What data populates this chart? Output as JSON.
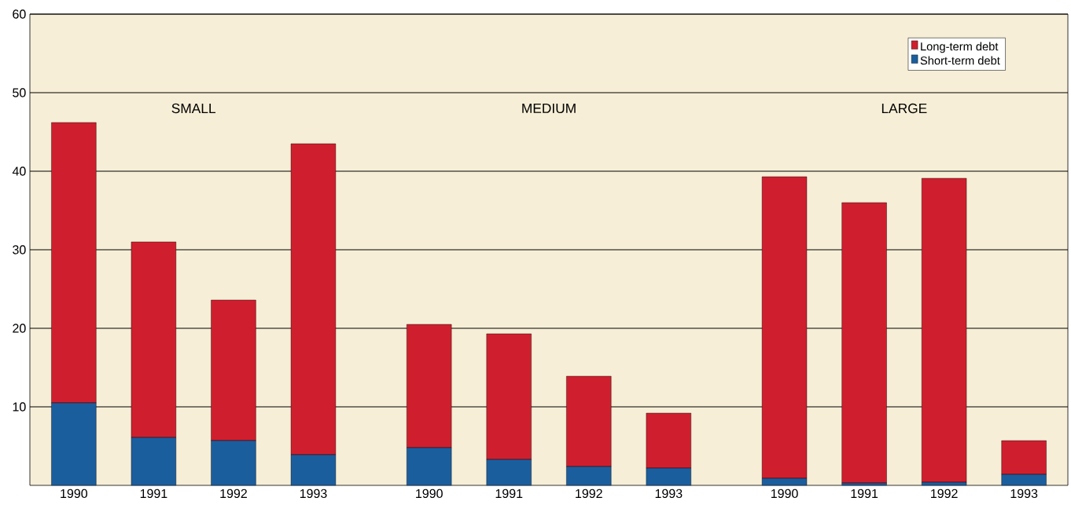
{
  "chart_data": {
    "type": "bar",
    "stacked": true,
    "categories": [
      "1990",
      "1991",
      "1992",
      "1993",
      "1990",
      "1991",
      "1992",
      "1993",
      "1990",
      "1991",
      "1992",
      "1993"
    ],
    "series": [
      {
        "name": "Short-term debt",
        "color": "#1b5e9e",
        "values": [
          10.5,
          6.1,
          5.7,
          3.9,
          4.8,
          3.3,
          2.4,
          2.2,
          0.9,
          0.3,
          0.4,
          1.4
        ]
      },
      {
        "name": "Long-term debt",
        "color": "#cf1f2e",
        "values": [
          35.7,
          24.9,
          17.9,
          39.6,
          15.7,
          16.0,
          11.5,
          7.0,
          38.4,
          35.7,
          38.7,
          4.3
        ]
      }
    ],
    "annotations": [
      "SMALL",
      "MEDIUM",
      "LARGE"
    ],
    "ylim": [
      0,
      60
    ],
    "yticks": [
      10,
      20,
      30,
      40,
      50,
      60
    ],
    "grid": "y",
    "legend": "top right"
  }
}
